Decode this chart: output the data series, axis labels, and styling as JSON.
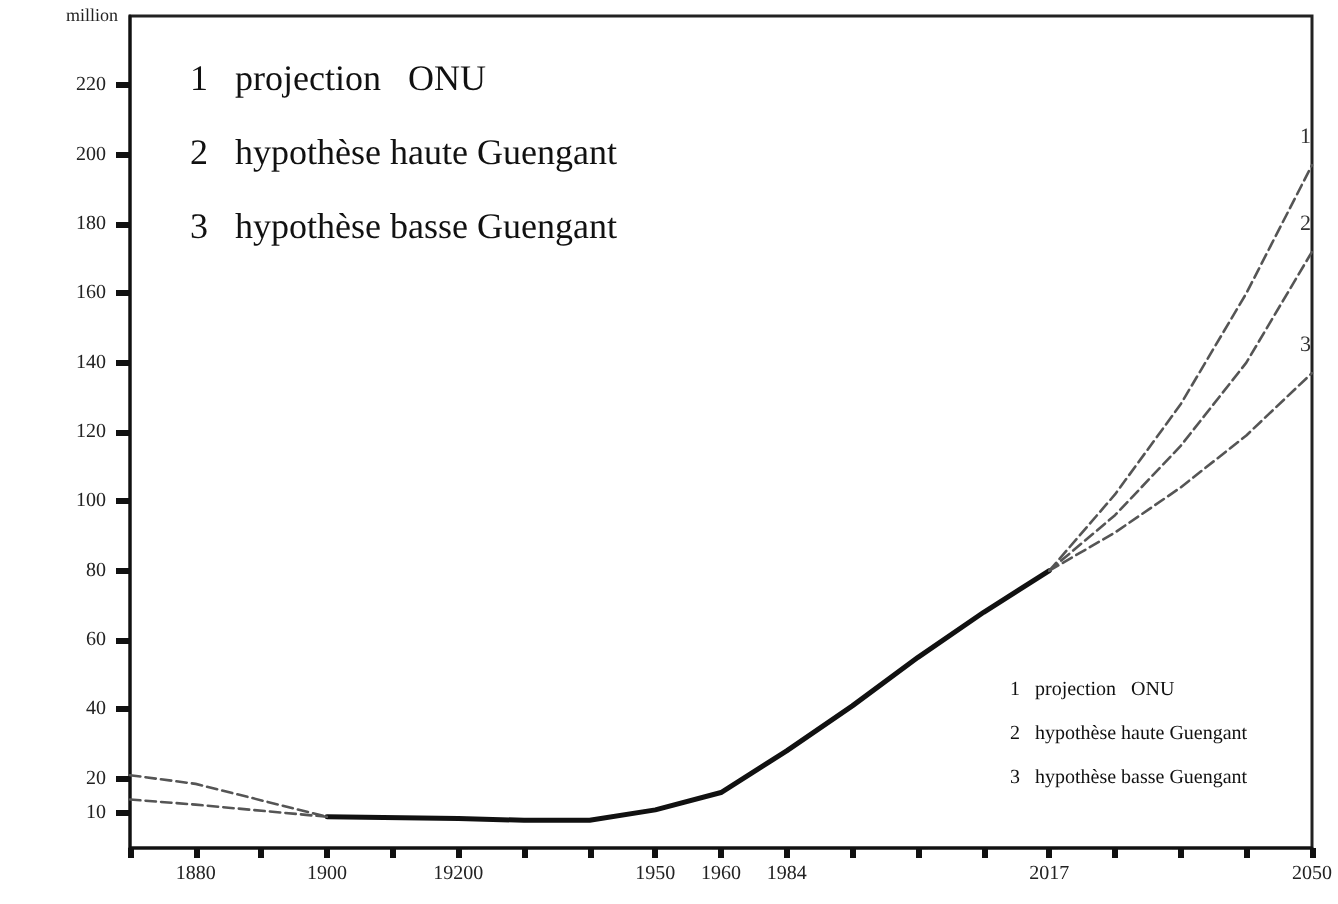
{
  "chart_data": {
    "type": "line",
    "ylabel": "million",
    "categories": [
      null,
      "1880",
      null,
      "1900",
      null,
      "19200",
      null,
      null,
      "1950",
      "1960",
      "1984",
      null,
      null,
      null,
      "2017",
      null,
      null,
      null,
      "2050"
    ],
    "series": [
      {
        "color": "#111111",
        "line_style": "solid",
        "values": [
          null,
          null,
          null,
          9,
          null,
          8.5,
          8,
          8,
          11,
          16,
          28,
          41,
          55,
          68,
          80,
          null,
          null,
          null,
          null
        ]
      },
      {
        "color": "#555555",
        "line_style": "dashed",
        "values": [
          21,
          18.5,
          null,
          9,
          null,
          null,
          null,
          null,
          null,
          null,
          null,
          null,
          null,
          null,
          null,
          null,
          null,
          null,
          null
        ]
      },
      {
        "color": "#555555",
        "line_style": "dashed",
        "values": [
          14,
          12.5,
          null,
          9,
          null,
          null,
          null,
          null,
          null,
          null,
          null,
          null,
          null,
          null,
          null,
          null,
          null,
          null,
          null
        ]
      },
      {
        "name": "1",
        "color": "#555555",
        "line_style": "dashed",
        "values": [
          null,
          null,
          null,
          null,
          null,
          null,
          null,
          null,
          null,
          null,
          null,
          null,
          null,
          null,
          80,
          102,
          128,
          160,
          197
        ]
      },
      {
        "name": "2",
        "color": "#555555",
        "line_style": "dashed",
        "values": [
          null,
          null,
          null,
          null,
          null,
          null,
          null,
          null,
          null,
          null,
          null,
          null,
          null,
          null,
          80,
          96,
          116,
          140,
          172
        ]
      },
      {
        "name": "3",
        "color": "#555555",
        "line_style": "dashed",
        "values": [
          null,
          null,
          null,
          null,
          null,
          null,
          null,
          null,
          null,
          null,
          null,
          null,
          null,
          null,
          80,
          91,
          104,
          119,
          137
        ]
      }
    ],
    "ylim": [
      0,
      240
    ],
    "yticks": [
      10,
      20,
      40,
      60,
      80,
      100,
      120,
      140,
      160,
      180,
      200,
      220
    ],
    "grid": false,
    "legend": false,
    "marker": "none",
    "annotations": [
      "1   projection   ONU",
      "2   hypothèse haute Guengant",
      "3   hypothèse basse Guengant",
      "1   projection   ONU",
      "2   hypothèse haute Guengant",
      "3   hypothèse basse Guengant"
    ]
  }
}
